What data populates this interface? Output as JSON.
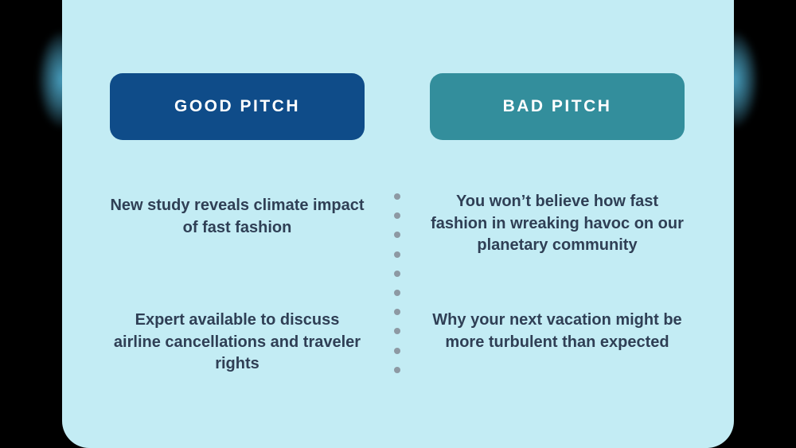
{
  "columns": {
    "good": {
      "label": "GOOD PITCH",
      "color": "#0f4c89",
      "items": [
        "New study reveals climate impact of fast fashion",
        "Expert available to discuss airline cancellations and traveler rights"
      ]
    },
    "bad": {
      "label": "BAD PITCH",
      "color": "#338e9c",
      "items": [
        "You won’t believe how fast fashion in wreaking havoc on our planetary community",
        "Why your next vacation might be more turbulent than expected"
      ]
    }
  },
  "divider": {
    "style": "dotted",
    "dot_count": 10,
    "color": "#8d99a3"
  },
  "theme": {
    "card_background": "#c3ecf4",
    "text_color": "#2f3f55"
  }
}
